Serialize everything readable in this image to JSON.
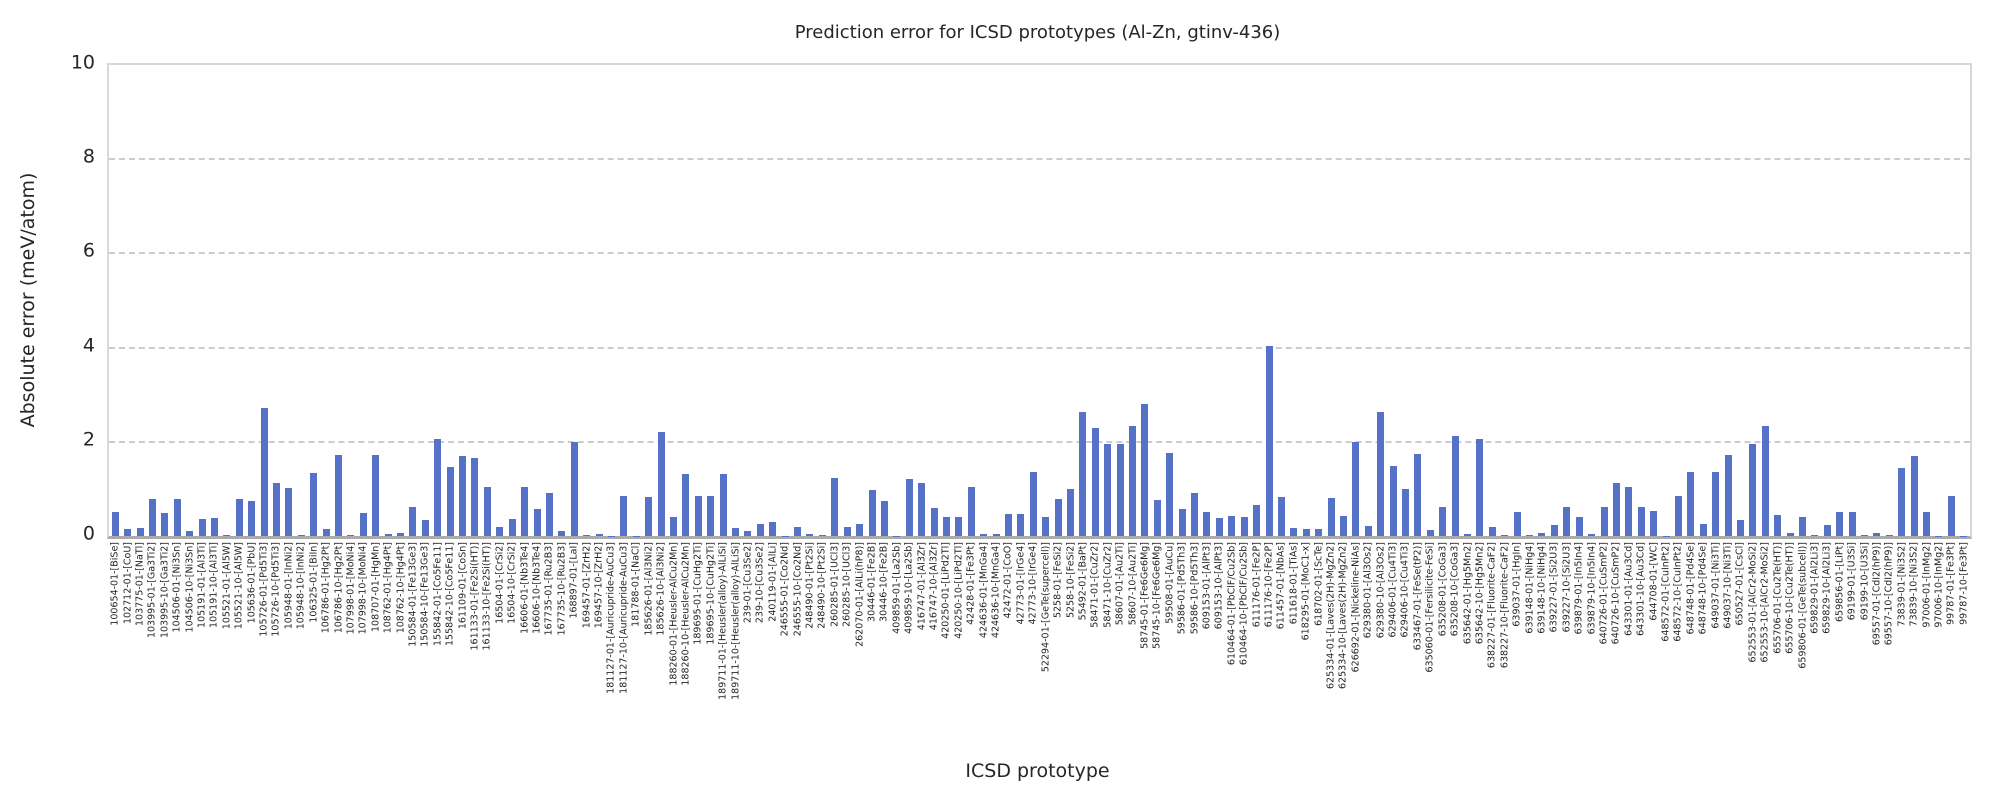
{
  "chart_data": {
    "type": "bar",
    "title": "Prediction error for ICSD prototypes (Al-Zn, gtinv-436)",
    "xlabel": "ICSD prototype",
    "ylabel": "Absolute error (meV/atom)",
    "ylim": [
      0,
      10
    ],
    "yticks": [
      0,
      2,
      4,
      6,
      8,
      10
    ],
    "grid": "horizontal-dashed",
    "legend": "none",
    "colors": {
      "bar": "#5572c8",
      "grid": "#cccccc",
      "spine": "#d9d9d9",
      "bottom_spine": "#ababab",
      "text": "#262626"
    },
    "categories": [
      "100654-01-[BiSe]",
      "102712-01-[CoU]",
      "103775-01-[NaTl]",
      "103995-01-[Ga3Ti2]",
      "103995-10-[Ga3Ti2]",
      "104506-01-[Ni3Sn]",
      "104506-10-[Ni3Sn]",
      "105191-01-[Al3Ti]",
      "105191-10-[Al3Ti]",
      "105521-01-[Al5W]",
      "105521-10-[Al5W]",
      "105636-01-[PbU]",
      "105726-01-[Pd5Ti3]",
      "105726-10-[Pd5Ti3]",
      "105948-01-[InNi2]",
      "105948-10-[InNi2]",
      "106325-01-[BiIn]",
      "106786-01-[Hg2Pt]",
      "106786-10-[Hg2Pt]",
      "107998-01-[MoNi4]",
      "107998-10-[MoNi4]",
      "108707-01-[HgMn]",
      "108762-01-[Hg4Pt]",
      "108762-10-[Hg4Pt]",
      "150584-01-[Fe13Ge3]",
      "150584-10-[Fe13Ge3]",
      "155842-01-[Co5Fe11]",
      "155842-10-[Co5Fe11]",
      "161109-01-[CoSn]",
      "161133-01-[Fe2Si(HT)]",
      "161133-10-[Fe2Si(HT)]",
      "16504-01-[CrSi2]",
      "16504-10-[CrSi2]",
      "16606-01-[Nb3Te4]",
      "16606-10-[Nb3Te4]",
      "167735-01-[Ru2B3]",
      "167735-10-[Ru2B3]",
      "168897-01-[LaI]",
      "169457-01-[ZrH2]",
      "169457-10-[ZrH2]",
      "181127-01-[Auricupride-AuCu3]",
      "181127-10-[Auricupride-AuCu3]",
      "181788-01-[NaCl]",
      "185626-01-[Al3Ni2]",
      "185626-10-[Al3Ni2]",
      "188260-01-[Heusler-AlCu2Mn]",
      "188260-10-[Heusler-AlCu2Mn]",
      "189695-01-[CuHg2Ti]",
      "189695-10-[CuHg2Ti]",
      "189711-01-[Heusler(alloy)-AlLiSi]",
      "189711-10-[Heusler(alloy)-AlLiSi]",
      "239-01-[Cu3Se2]",
      "239-10-[Cu3Se2]",
      "240119-01-[AlLi]",
      "246555-01-[Co2Nd]",
      "246555-10-[Co2Nd]",
      "248490-01-[Pt2Si]",
      "248490-10-[Pt2Si]",
      "260285-01-[UCl3]",
      "260285-10-[UCl3]",
      "262070-01-[AlLi(hP8)]",
      "30446-01-[Fe2B]",
      "30446-10-[Fe2B]",
      "409859-01-[La2Sb]",
      "409859-10-[La2Sb]",
      "416747-01-[Al3Zr]",
      "416747-10-[Al3Zr]",
      "420250-01-[LiPd2Tl]",
      "420250-10-[LiPd2Tl]",
      "42428-01-[Fe3Pt]",
      "424636-01-[MnGa4]",
      "424636-10-[MnGa4]",
      "42472-01-[CoO]",
      "42773-01-[IrGe4]",
      "42773-10-[IrGe4]",
      "52294-01-[GeTe(supercell)]",
      "5258-01-[FeSi2]",
      "5258-10-[FeSi2]",
      "55492-01-[BaPt]",
      "58471-01-[CuZr2]",
      "58471-10-[CuZr2]",
      "58607-01-[Au2Ti]",
      "58607-10-[Au2Ti]",
      "58745-01-[Fe6Ge6Mg]",
      "58745-10-[Fe6Ge6Mg]",
      "59508-01-[AuCu]",
      "59586-01-[Pd5Th3]",
      "59586-10-[Pd5Th3]",
      "609153-01-[AlPt3]",
      "609153-10-[AlPt3]",
      "610464-01-[PbClF/Cu2Sb]",
      "610464-10-[PbClF/Cu2Sb]",
      "611176-01-[Fe2P]",
      "611176-10-[Fe2P]",
      "611457-01-[NbAs]",
      "611618-01-[TiAs]",
      "618295-01-[MoC1-x]",
      "618702-01-[ScTe]",
      "625334-01-[Laves(2H)-MgZn2]",
      "625334-10-[Laves(2H)-MgZn2]",
      "626692-01-[Nickeline-NiAs]",
      "629380-01-[Al3Os2]",
      "629380-10-[Al3Os2]",
      "629406-01-[Cu4Ti3]",
      "629406-10-[Cu4Ti3]",
      "633467-01-[FeSe(tP2)]",
      "635060-01-[Fersilicite-FeSi]",
      "635208-01-[CoGa3]",
      "635208-10-[CoGa3]",
      "635642-01-[Hg5Mn2]",
      "635642-10-[Hg5Mn2]",
      "638227-01-[Fluorite-CaF2]",
      "638227-10-[Fluorite-CaF2]",
      "639037-01-[HgIn]",
      "639148-01-[NiHg4]",
      "639148-10-[NiHg4]",
      "639227-01-[Si2U3]",
      "639227-10-[Si2U3]",
      "639879-01-[In5In4]",
      "639879-10-[In5In4]",
      "640726-01-[CuSmP2]",
      "640726-10-[CuSmP2]",
      "643301-01-[Au3Cd]",
      "643301-10-[Au3Cd]",
      "644708-01-[WC]",
      "648572-01-[CuInPt2]",
      "648572-10-[CuInPt2]",
      "648748-01-[Pd4Se]",
      "648748-10-[Pd4Se]",
      "649037-01-[Ni3Ti]",
      "649037-10-[Ni3Ti]",
      "650527-01-[CsCl]",
      "652553-01-[AlCr2-MoSi2]",
      "652553-10-[AlCr2-MoSi2]",
      "655706-01-[Cu2Te(HT)]",
      "655706-10-[Cu2Te(HT)]",
      "659806-01-[GeTe(subcell)]",
      "659829-01-[Al2Li3]",
      "659829-10-[Al2Li3]",
      "659856-01-[LiPt]",
      "69199-01-[U3Si]",
      "69199-10-[U3Si]",
      "69557-01-[CdI2(hP9)]",
      "69557-10-[CdI2(hP9)]",
      "73839-01-[Ni3S2]",
      "73839-10-[Ni3S2]",
      "97006-01-[InMg2]",
      "97006-10-[InMg2]",
      "99787-01-[Fe3Pt]",
      "99787-10-[Fe3Pt]"
    ],
    "values": [
      0.52,
      0.15,
      0.18,
      0.78,
      0.48,
      0.78,
      0.11,
      0.36,
      0.38,
      0.03,
      0.78,
      0.74,
      2.72,
      1.12,
      1.03,
      0.03,
      1.33,
      0.15,
      1.72,
      0.02,
      0.48,
      1.72,
      0.04,
      0.06,
      0.62,
      0.33,
      2.05,
      1.47,
      1.7,
      1.65,
      1.05,
      0.2,
      0.36,
      1.05,
      0.57,
      0.91,
      0.11,
      2.0,
      0.02,
      0.05,
      0.01,
      0.86,
      0.01,
      0.82,
      2.2,
      0.41,
      1.31,
      0.85,
      0.85,
      1.31,
      0.17,
      0.1,
      0.26,
      0.29,
      0.01,
      0.19,
      0.04,
      0.02,
      1.23,
      0.2,
      0.26,
      0.98,
      0.75,
      0.01,
      1.22,
      1.12,
      0.6,
      0.4,
      0.41,
      1.05,
      0.04,
      0.05,
      0.46,
      0.46,
      1.36,
      0.4,
      0.78,
      0.99,
      2.63,
      2.3,
      1.95,
      1.95,
      2.33,
      2.8,
      0.77,
      1.77,
      0.57,
      0.92,
      0.52,
      0.38,
      0.42,
      0.4,
      0.66,
      4.03,
      0.83,
      0.16,
      0.14,
      0.14,
      0.8,
      0.42,
      1.99,
      0.21,
      2.64,
      1.48,
      1.0,
      1.74,
      0.13,
      0.61,
      2.12,
      0.05,
      2.06,
      0.19,
      0.02,
      0.52,
      0.03,
      0.06,
      0.24,
      0.61,
      0.41,
      0.05,
      0.61,
      1.12,
      1.05,
      0.61,
      0.54,
      0.01,
      0.86,
      1.35,
      0.25,
      1.36,
      1.72,
      0.34,
      1.96,
      2.33,
      0.44,
      0.07,
      0.41,
      0.02,
      0.24,
      0.52,
      0.52,
      0.02,
      0.06,
      0.02,
      1.45,
      1.7,
      0.51,
      0.01,
      0.85,
      0.01
    ]
  }
}
